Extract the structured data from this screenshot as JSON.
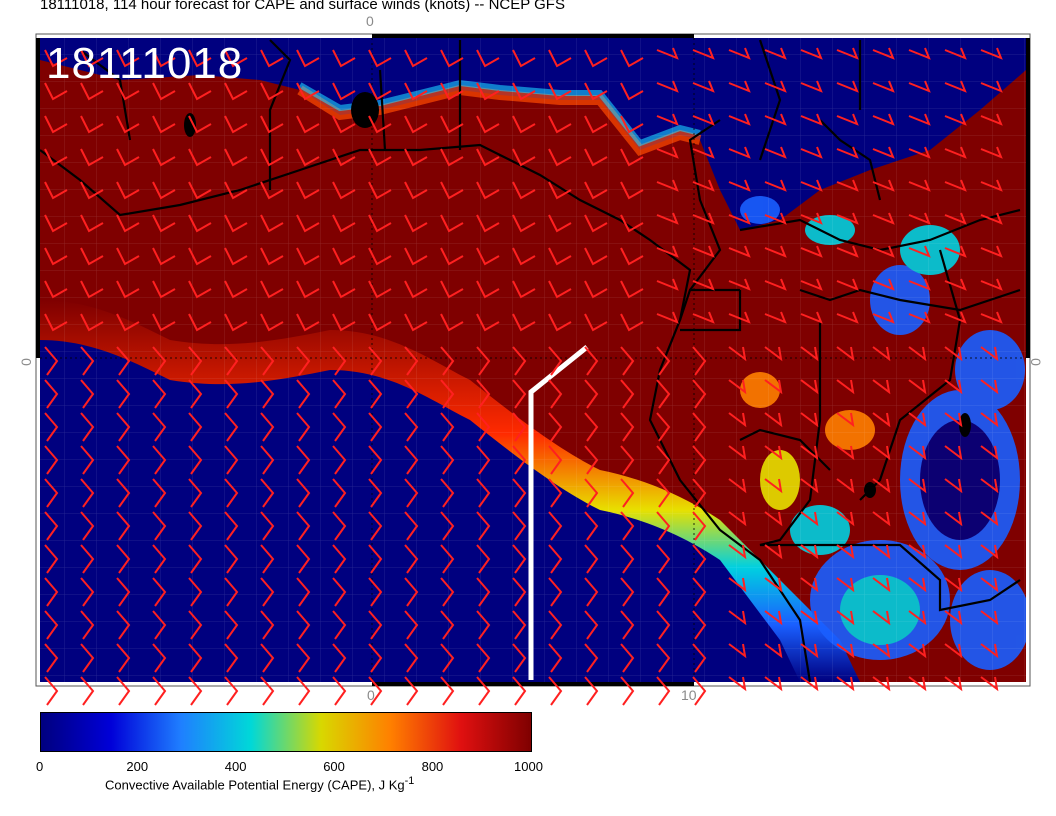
{
  "title": "18111018, 114 hour forecast for CAPE and surface winds (knots) -- NCEP GFS",
  "date_stamp": "18111018",
  "map_ticks": {
    "top_0": "0",
    "bottom_0": "0",
    "bottom_10": "10",
    "left_0": "0",
    "right_0": "0"
  },
  "colorbar": {
    "labels": [
      "0",
      "200",
      "400",
      "600",
      "800",
      "1000"
    ],
    "min": 0,
    "max": 1000,
    "title": "Convective Available Potential Energy (CAPE), J Kg",
    "unit_superscript": "-1",
    "gradient": [
      "#00007f",
      "#0000d8",
      "#1f7fff",
      "#00d8d8",
      "#d8d800",
      "#ff7f00",
      "#e01010",
      "#7f0000"
    ]
  },
  "colors": {
    "low_cape": "#00007f",
    "high_cape": "#7f0000",
    "wind_barbs": "#ff2020",
    "coastline": "#000000",
    "track_line": "#ffffff"
  }
}
